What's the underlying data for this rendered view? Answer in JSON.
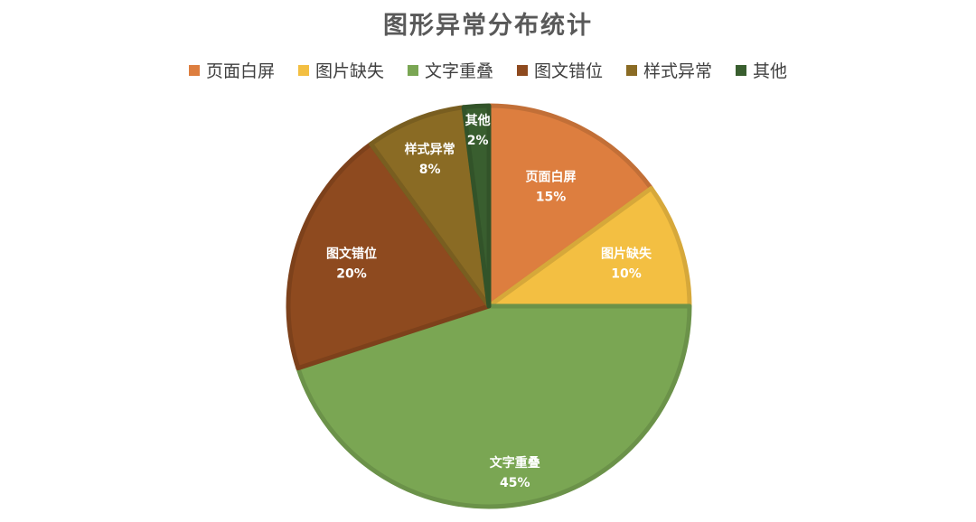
{
  "chart_data": {
    "type": "pie",
    "title": "图形异常分布统计",
    "legend_position": "top",
    "slices": [
      {
        "name": "页面白屏",
        "value": 15,
        "label": "15%",
        "color": "#DD7E3F"
      },
      {
        "name": "图片缺失",
        "value": 10,
        "label": "10%",
        "color": "#F3BF42"
      },
      {
        "name": "文字重叠",
        "value": 45,
        "label": "45%",
        "color": "#7AA653"
      },
      {
        "name": "图文错位",
        "value": 20,
        "label": "20%",
        "color": "#8E4A1F"
      },
      {
        "name": "样式异常",
        "value": 8,
        "label": "8%",
        "color": "#8A6B24"
      },
      {
        "name": "其他",
        "value": 2,
        "label": "2%",
        "color": "#395E2F"
      }
    ]
  }
}
